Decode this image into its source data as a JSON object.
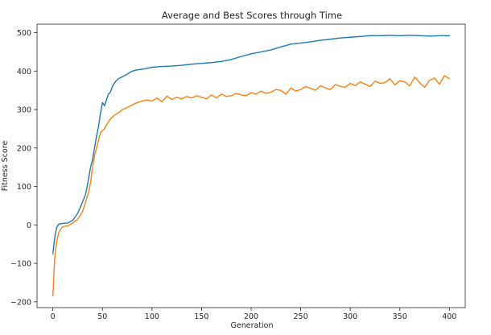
{
  "chart_data": {
    "type": "line",
    "title": "Average and Best Scores through Time",
    "xlabel": "Generation",
    "ylabel": "Fitness Score",
    "xlim": [
      -16,
      416
    ],
    "ylim": [
      -215,
      522
    ],
    "xticks": [
      0,
      50,
      100,
      150,
      200,
      250,
      300,
      350,
      400
    ],
    "yticks": [
      -200,
      -100,
      0,
      100,
      200,
      300,
      400,
      500
    ],
    "grid": false,
    "legend": "none",
    "series": [
      {
        "color": "#1f77b4",
        "x": [
          0,
          2,
          4,
          6,
          8,
          10,
          15,
          20,
          25,
          30,
          33,
          36,
          38,
          40,
          42,
          44,
          46,
          48,
          50,
          52,
          54,
          56,
          58,
          60,
          63,
          66,
          70,
          75,
          80,
          85,
          90,
          95,
          100,
          110,
          120,
          130,
          140,
          150,
          160,
          170,
          180,
          190,
          200,
          210,
          220,
          230,
          240,
          250,
          260,
          270,
          280,
          290,
          300,
          310,
          320,
          330,
          340,
          350,
          360,
          370,
          380,
          390,
          400
        ],
        "y": [
          -75,
          -30,
          -5,
          2,
          3,
          4,
          5,
          12,
          30,
          60,
          80,
          120,
          150,
          170,
          200,
          230,
          255,
          290,
          318,
          310,
          325,
          340,
          345,
          360,
          372,
          380,
          385,
          392,
          400,
          403,
          405,
          407,
          410,
          412,
          413,
          415,
          418,
          420,
          422,
          425,
          430,
          438,
          445,
          450,
          455,
          463,
          470,
          473,
          476,
          480,
          483,
          486,
          488,
          490,
          492,
          492,
          493,
          492,
          493,
          492,
          491,
          492,
          492
        ]
      },
      {
        "color": "#ff7f0e",
        "x": [
          0,
          2,
          4,
          6,
          8,
          10,
          15,
          20,
          25,
          30,
          33,
          36,
          38,
          40,
          42,
          44,
          46,
          48,
          50,
          52,
          54,
          56,
          58,
          60,
          62,
          65,
          68,
          70,
          75,
          80,
          85,
          90,
          95,
          100,
          105,
          110,
          115,
          120,
          125,
          130,
          135,
          140,
          145,
          150,
          155,
          160,
          165,
          170,
          175,
          180,
          185,
          190,
          195,
          200,
          205,
          210,
          215,
          220,
          225,
          230,
          235,
          240,
          245,
          250,
          255,
          260,
          265,
          270,
          275,
          280,
          285,
          290,
          295,
          300,
          305,
          310,
          315,
          320,
          325,
          330,
          335,
          340,
          345,
          350,
          355,
          360,
          365,
          370,
          375,
          380,
          385,
          390,
          395,
          400
        ],
        "y": [
          -185,
          -80,
          -40,
          -20,
          -10,
          -5,
          -2,
          5,
          15,
          35,
          60,
          85,
          110,
          150,
          180,
          200,
          220,
          240,
          245,
          250,
          260,
          268,
          275,
          280,
          285,
          290,
          295,
          300,
          305,
          312,
          318,
          322,
          325,
          322,
          330,
          320,
          335,
          326,
          332,
          328,
          334,
          330,
          336,
          332,
          328,
          338,
          330,
          340,
          334,
          336,
          342,
          338,
          336,
          344,
          340,
          348,
          342,
          345,
          352,
          350,
          340,
          356,
          348,
          352,
          360,
          355,
          350,
          362,
          356,
          352,
          365,
          360,
          358,
          368,
          362,
          372,
          366,
          360,
          374,
          368,
          370,
          380,
          364,
          375,
          372,
          362,
          384,
          370,
          358,
          376,
          382,
          366,
          388,
          380
        ]
      }
    ]
  }
}
